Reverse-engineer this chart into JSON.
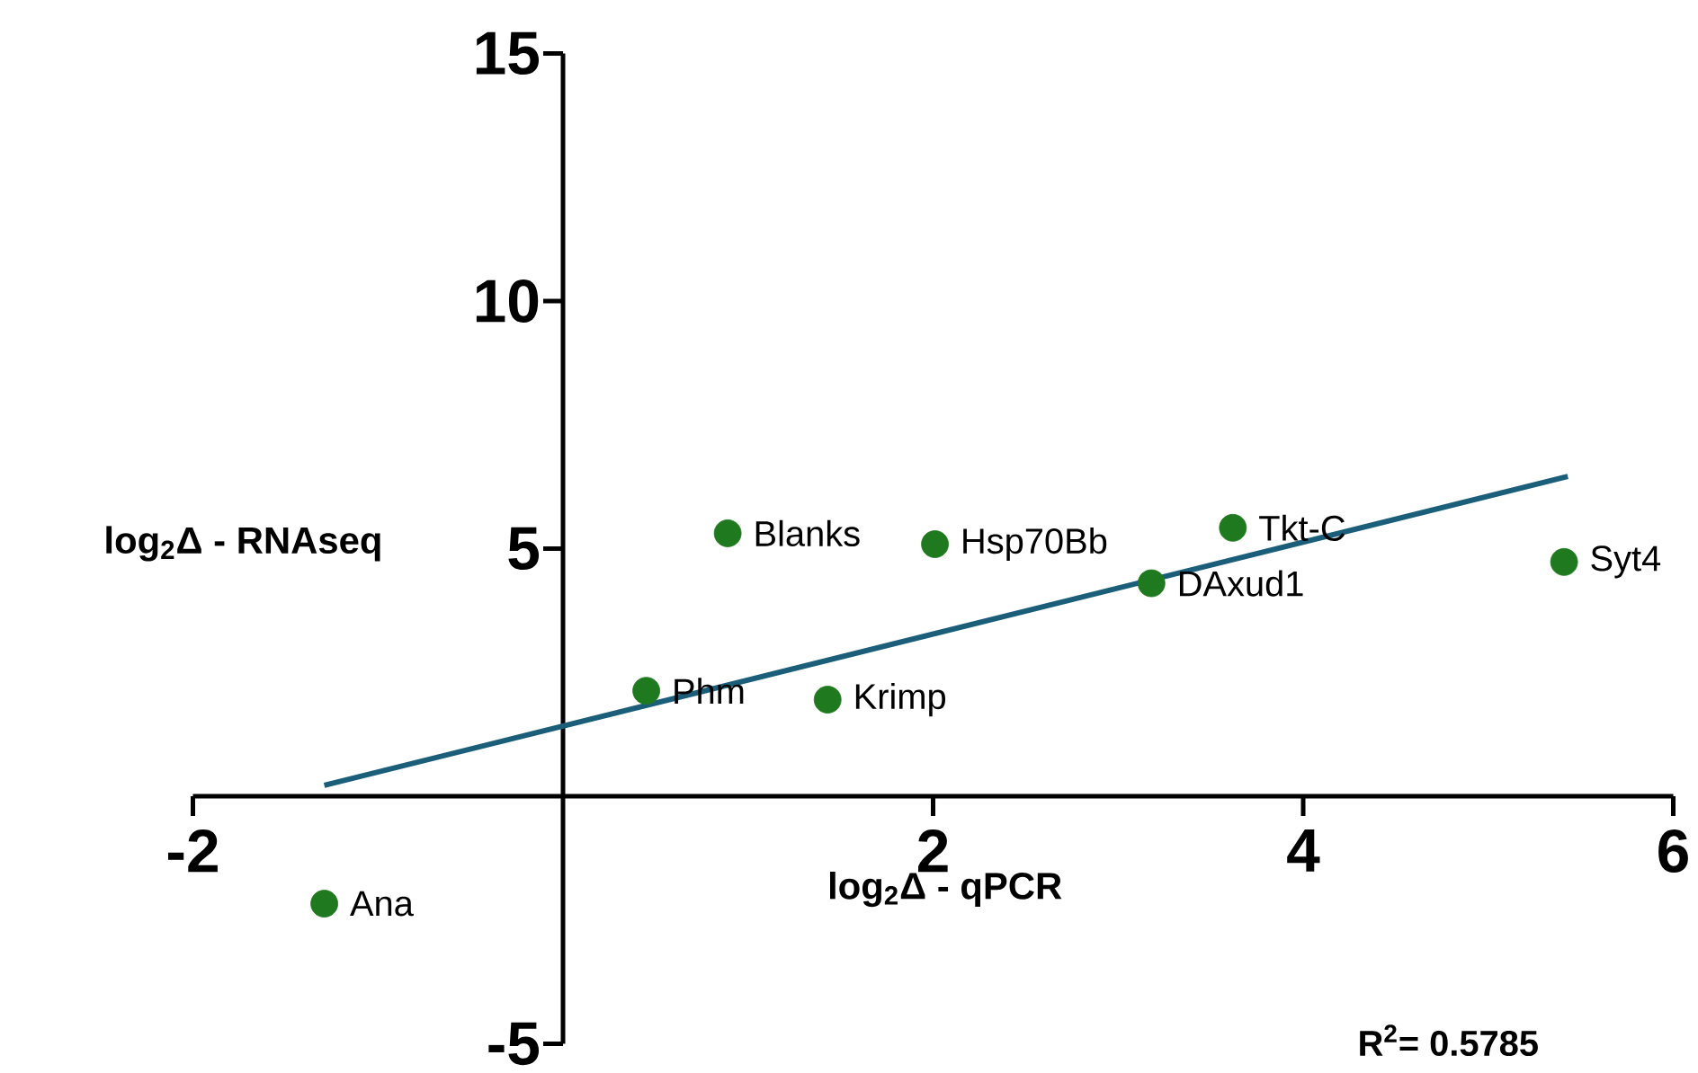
{
  "chart_data": {
    "type": "scatter",
    "xlabel": "log$_{2}$Δ - qPCR",
    "ylabel": "log$_{2}$Δ - RNAseq",
    "xlim": [
      -2,
      6
    ],
    "ylim": [
      -5,
      15
    ],
    "xticks": [
      -2,
      2,
      4,
      6
    ],
    "yticks": [
      -5,
      5,
      10,
      15
    ],
    "grid": false,
    "series": [
      {
        "type": "scatter",
        "marker": "circle",
        "color": "#1f7a1f",
        "x": [
          -1.29,
          0.45,
          1.43,
          0.89,
          2.01,
          3.18,
          3.62,
          5.41
        ],
        "values": [
          -2.17,
          2.13,
          1.95,
          5.31,
          5.09,
          4.3,
          5.42,
          4.73
        ]
      },
      {
        "type": "line",
        "marker": "none",
        "color": "#1a5e7a",
        "x": [
          -1.29,
          5.43
        ],
        "values": [
          0.22,
          6.46
        ]
      }
    ],
    "annotations": [
      {
        "text": "Ana",
        "x": -1.29,
        "y": -2.17
      },
      {
        "text": "Phm",
        "x": 0.45,
        "y": 2.13
      },
      {
        "text": "Krimp",
        "x": 1.43,
        "y": 1.95
      },
      {
        "text": "Blanks",
        "x": 0.89,
        "y": 5.31
      },
      {
        "text": "Hsp70Bb",
        "x": 2.01,
        "y": 5.09
      },
      {
        "text": "DAxud1",
        "x": 3.18,
        "y": 4.3
      },
      {
        "text": "Tkt-C",
        "x": 3.62,
        "y": 5.42
      },
      {
        "text": "Syt4",
        "x": 5.41,
        "y": 4.73
      },
      "R$^{2}$= 0.5785"
    ]
  }
}
